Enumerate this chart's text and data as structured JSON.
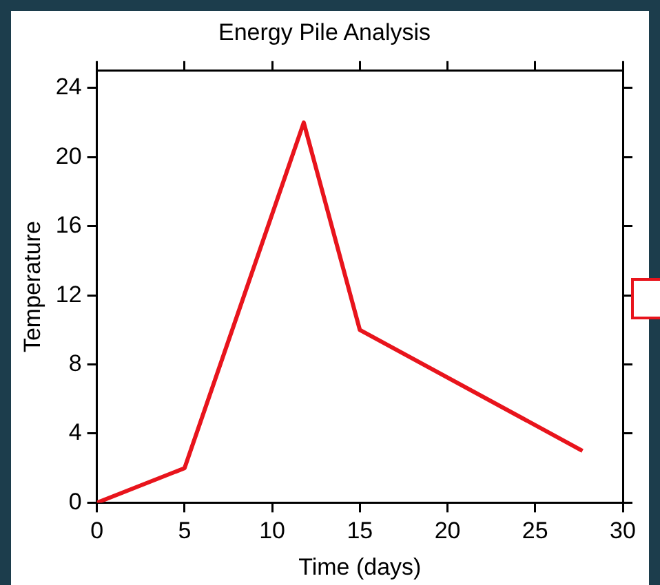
{
  "chart_data": {
    "type": "line",
    "title": "Energy Pile Analysis",
    "xlabel": "Time (days)",
    "ylabel": "Temperature",
    "x": [
      0,
      5,
      11.8,
      15,
      27.7
    ],
    "series": [
      {
        "color": "#e8141c",
        "values": [
          0,
          2,
          22,
          10,
          3
        ]
      }
    ],
    "xlim": [
      0,
      30
    ],
    "xticks": [
      0,
      5,
      10,
      15,
      20,
      25,
      30
    ],
    "ylim": [
      0,
      25
    ],
    "yticks": [
      0,
      4,
      8,
      12,
      16,
      20,
      24
    ],
    "grid": false,
    "legend": false,
    "marker": "none",
    "line_style": "solid"
  }
}
